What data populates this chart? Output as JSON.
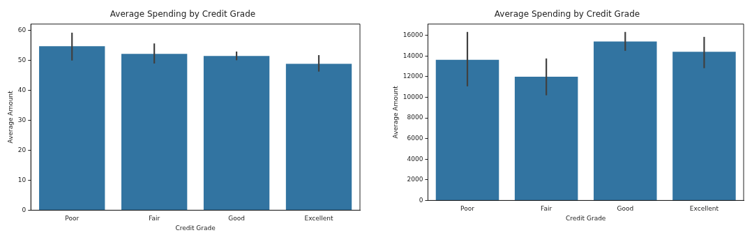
{
  "chart_data": [
    {
      "type": "bar",
      "title": "Average Spending by Credit Grade",
      "xlabel": "Credit Grade",
      "ylabel": "Average Amount",
      "categories": [
        "Poor",
        "Fair",
        "Good",
        "Excellent"
      ],
      "values": [
        54.8,
        52.2,
        51.5,
        48.9
      ],
      "errors": [
        [
          50,
          59.3
        ],
        [
          49,
          55.7
        ],
        [
          50.1,
          53
        ],
        [
          46.3,
          51.8
        ]
      ],
      "color": "#3274a1",
      "ylim": [
        0,
        62.2
      ],
      "yticks": [
        0,
        10,
        20,
        30,
        40,
        50,
        60
      ],
      "grid": false
    },
    {
      "type": "bar",
      "title": "Average Spending by Credit Grade",
      "xlabel": "Credit Grade",
      "ylabel": "Average Amount",
      "categories": [
        "Poor",
        "Fair",
        "Good",
        "Excellent"
      ],
      "values": [
        13630,
        11990,
        15410,
        14410
      ],
      "errors": [
        [
          11060,
          16330
        ],
        [
          10190,
          13760
        ],
        [
          14500,
          16330
        ],
        [
          12820,
          15850
        ]
      ],
      "color": "#3274a1",
      "ylim": [
        0,
        17100
      ],
      "yticks": [
        0,
        2000,
        4000,
        6000,
        8000,
        10000,
        12000,
        14000,
        16000
      ],
      "grid": false
    }
  ]
}
